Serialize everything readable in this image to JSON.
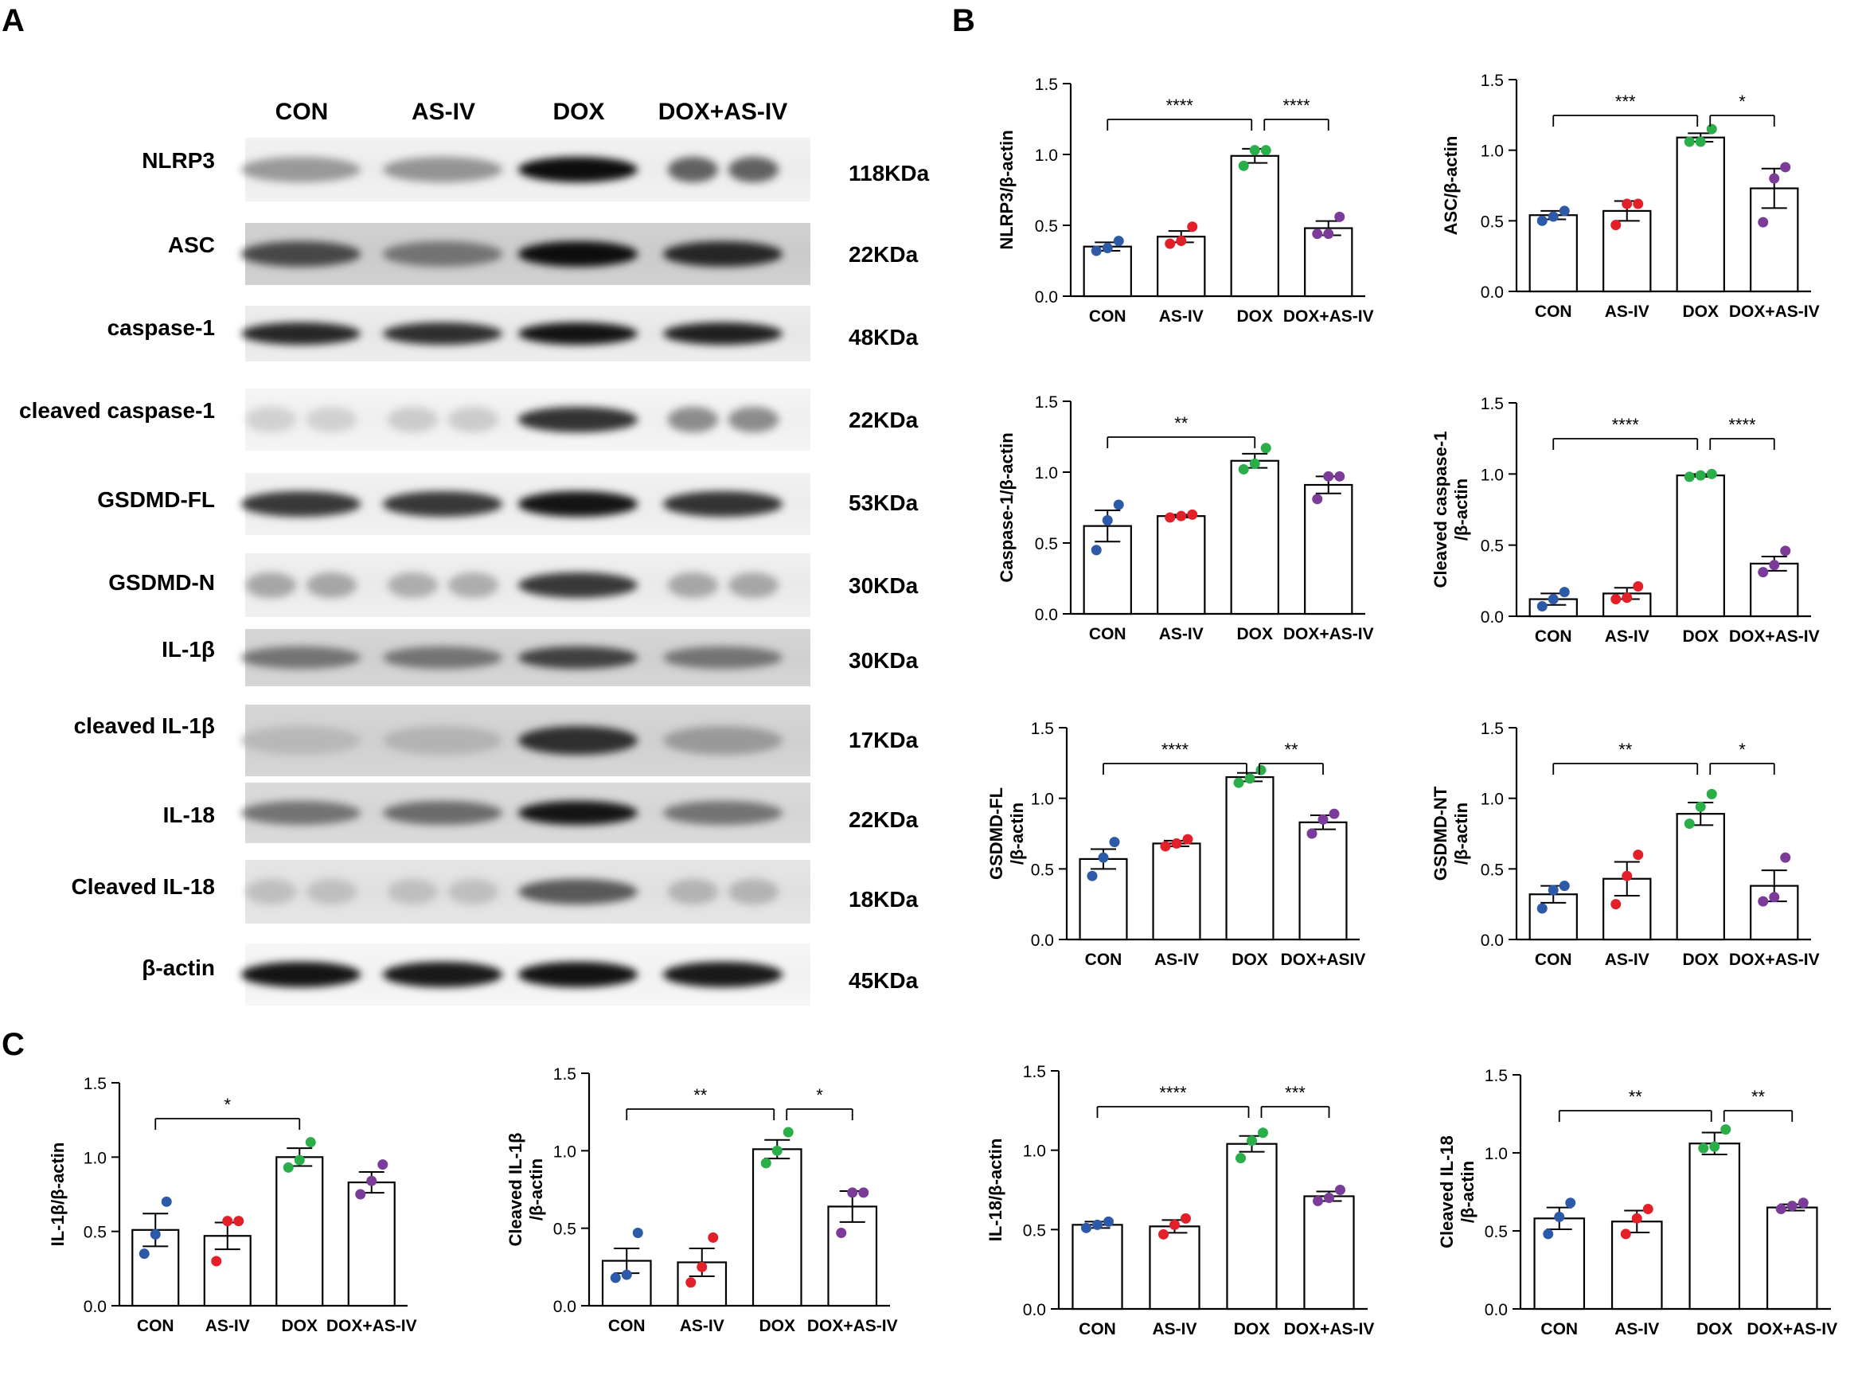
{
  "panels": {
    "a": "A",
    "b": "B",
    "c": "C"
  },
  "lanes": [
    "CON",
    "AS-IV",
    "DOX",
    "DOX+AS-IV"
  ],
  "blots": [
    {
      "protein": "NLRP3",
      "kda": "118KDa",
      "bands": [
        0.4,
        0.42,
        0.95,
        0.62
      ],
      "split": [
        false,
        false,
        false,
        true
      ],
      "bg": 0.05
    },
    {
      "protein": "ASC",
      "kda": "22KDa",
      "bands": [
        0.72,
        0.55,
        0.95,
        0.85
      ],
      "split": [
        false,
        false,
        false,
        false
      ],
      "bg": 0.18
    },
    {
      "protein": "caspase-1",
      "kda": "48KDa",
      "bands": [
        0.85,
        0.82,
        0.93,
        0.88
      ],
      "split": [
        false,
        false,
        false,
        false
      ],
      "bg": 0.07
    },
    {
      "protein": "cleaved caspase-1",
      "kda": "22KDa",
      "bands": [
        0.18,
        0.2,
        0.8,
        0.45
      ],
      "split": [
        true,
        true,
        false,
        true
      ],
      "bg": 0.04
    },
    {
      "protein": "GSDMD-FL",
      "kda": "53KDa",
      "bands": [
        0.78,
        0.78,
        0.92,
        0.8
      ],
      "split": [
        false,
        false,
        false,
        false
      ],
      "bg": 0.05
    },
    {
      "protein": "GSDMD-N",
      "kda": "30KDa",
      "bands": [
        0.35,
        0.32,
        0.78,
        0.35
      ],
      "split": [
        true,
        true,
        false,
        true
      ],
      "bg": 0.06
    },
    {
      "protein": "IL-1β",
      "kda": "30KDa",
      "bands": [
        0.55,
        0.55,
        0.75,
        0.55
      ],
      "split": [
        false,
        false,
        false,
        false
      ],
      "bg": 0.16
    },
    {
      "protein": "cleaved IL-1β",
      "kda": "17KDa",
      "bands": [
        0.28,
        0.3,
        0.82,
        0.4
      ],
      "split": [
        false,
        false,
        false,
        false
      ],
      "bg": 0.16
    },
    {
      "protein": "IL-18",
      "kda": "22KDa",
      "bands": [
        0.55,
        0.58,
        0.92,
        0.55
      ],
      "split": [
        false,
        false,
        false,
        false
      ],
      "bg": 0.14
    },
    {
      "protein": "Cleaved IL-18",
      "kda": "18KDa",
      "bands": [
        0.25,
        0.25,
        0.65,
        0.3
      ],
      "split": [
        true,
        true,
        false,
        true
      ],
      "bg": 0.1
    },
    {
      "protein": "β-actin",
      "kda": "45KDa",
      "bands": [
        0.92,
        0.9,
        0.93,
        0.9
      ],
      "split": [
        false,
        false,
        false,
        false
      ],
      "bg": 0.03
    }
  ],
  "colors": {
    "con": "#2d5aa8",
    "asiv": "#e3202a",
    "dox": "#2aae4a",
    "doxasiv": "#7a3c98",
    "bar_fill": "#ffffff",
    "axis": "#000000"
  },
  "chart_data": [
    {
      "type": "bar",
      "panel": "B",
      "ylabel": [
        "NLRP3/β-actin"
      ],
      "categories": [
        "CON",
        "AS-IV",
        "DOX",
        "DOX+AS-IV"
      ],
      "values": [
        0.35,
        0.42,
        0.99,
        0.48
      ],
      "sem": [
        0.03,
        0.04,
        0.05,
        0.05
      ],
      "points": [
        [
          0.32,
          0.34,
          0.39
        ],
        [
          0.37,
          0.39,
          0.49
        ],
        [
          0.92,
          1.03,
          1.03
        ],
        [
          0.44,
          0.44,
          0.56
        ]
      ],
      "ylim": [
        0,
        1.5
      ],
      "yticks": [
        "0.0",
        "0.5",
        "1.0",
        "1.5"
      ],
      "sig": [
        [
          "****",
          0,
          2
        ],
        [
          "****",
          2,
          3
        ]
      ]
    },
    {
      "type": "bar",
      "panel": "B",
      "ylabel": [
        "ASC/β-actin"
      ],
      "categories": [
        "CON",
        "AS-IV",
        "DOX",
        "DOX+AS-IV"
      ],
      "values": [
        0.54,
        0.57,
        1.09,
        0.73
      ],
      "sem": [
        0.03,
        0.07,
        0.03,
        0.14
      ],
      "points": [
        [
          0.5,
          0.53,
          0.57
        ],
        [
          0.47,
          0.62,
          0.62
        ],
        [
          1.06,
          1.06,
          1.15
        ],
        [
          0.49,
          0.8,
          0.88
        ]
      ],
      "ylim": [
        0,
        1.5
      ],
      "yticks": [
        "0.0",
        "0.5",
        "1.0",
        "1.5"
      ],
      "sig": [
        [
          "***",
          0,
          2
        ],
        [
          "*",
          2,
          3
        ]
      ]
    },
    {
      "type": "bar",
      "panel": "B",
      "ylabel": [
        "Caspase-1/β-actin"
      ],
      "categories": [
        "CON",
        "AS-IV",
        "DOX",
        "DOX+AS-IV"
      ],
      "values": [
        0.62,
        0.69,
        1.08,
        0.91
      ],
      "sem": [
        0.11,
        0.01,
        0.05,
        0.06
      ],
      "points": [
        [
          0.45,
          0.66,
          0.77
        ],
        [
          0.68,
          0.69,
          0.7
        ],
        [
          1.02,
          1.06,
          1.17
        ],
        [
          0.81,
          0.97,
          0.97
        ]
      ],
      "ylim": [
        0,
        1.5
      ],
      "yticks": [
        "0.0",
        "0.5",
        "1.0",
        "1.5"
      ],
      "sig": [
        [
          "**",
          0,
          2
        ]
      ]
    },
    {
      "type": "bar",
      "panel": "B",
      "ylabel": [
        "Cleaved caspase-1",
        "/β-actin"
      ],
      "categories": [
        "CON",
        "AS-IV",
        "DOX",
        "DOX+AS-IV"
      ],
      "values": [
        0.12,
        0.16,
        0.99,
        0.37
      ],
      "sem": [
        0.04,
        0.04,
        0.01,
        0.05
      ],
      "points": [
        [
          0.07,
          0.12,
          0.17
        ],
        [
          0.12,
          0.13,
          0.21
        ],
        [
          0.98,
          0.99,
          1.0
        ],
        [
          0.31,
          0.36,
          0.46
        ]
      ],
      "ylim": [
        0,
        1.5
      ],
      "yticks": [
        "0.0",
        "0.5",
        "1.0",
        "1.5"
      ],
      "sig": [
        [
          "****",
          0,
          2
        ],
        [
          "****",
          2,
          3
        ]
      ]
    },
    {
      "type": "bar",
      "panel": "B",
      "ylabel": [
        "GSDMD-FL",
        "/β-actin"
      ],
      "categories": [
        "CON",
        "AS-IV",
        "DOX",
        "DOX+ASIV"
      ],
      "values": [
        0.57,
        0.68,
        1.15,
        0.83
      ],
      "sem": [
        0.07,
        0.02,
        0.03,
        0.05
      ],
      "points": [
        [
          0.45,
          0.58,
          0.69
        ],
        [
          0.66,
          0.68,
          0.71
        ],
        [
          1.11,
          1.14,
          1.2
        ],
        [
          0.75,
          0.85,
          0.89
        ]
      ],
      "ylim": [
        0,
        1.5
      ],
      "yticks": [
        "0.0",
        "0.5",
        "1.0",
        "1.5"
      ],
      "sig": [
        [
          "****",
          0,
          2
        ],
        [
          "**",
          2,
          3
        ]
      ]
    },
    {
      "type": "bar",
      "panel": "B",
      "ylabel": [
        "GSDMD-NT",
        "/β-actin"
      ],
      "categories": [
        "CON",
        "AS-IV",
        "DOX",
        "DOX+AS-IV"
      ],
      "values": [
        0.32,
        0.43,
        0.89,
        0.38
      ],
      "sem": [
        0.06,
        0.12,
        0.08,
        0.11
      ],
      "points": [
        [
          0.22,
          0.35,
          0.38
        ],
        [
          0.25,
          0.45,
          0.6
        ],
        [
          0.82,
          0.94,
          1.03
        ],
        [
          0.27,
          0.3,
          0.58
        ]
      ],
      "ylim": [
        0,
        1.5
      ],
      "yticks": [
        "0.0",
        "0.5",
        "1.0",
        "1.5"
      ],
      "sig": [
        [
          "**",
          0,
          2
        ],
        [
          "*",
          2,
          3
        ]
      ]
    },
    {
      "type": "bar",
      "panel": "C",
      "ylabel": [
        "IL-1β/β-actin"
      ],
      "categories": [
        "CON",
        "AS-IV",
        "DOX",
        "DOX+AS-IV"
      ],
      "values": [
        0.51,
        0.47,
        1.0,
        0.83
      ],
      "sem": [
        0.11,
        0.09,
        0.06,
        0.07
      ],
      "points": [
        [
          0.35,
          0.48,
          0.7
        ],
        [
          0.3,
          0.57,
          0.57
        ],
        [
          0.93,
          0.98,
          1.1
        ],
        [
          0.75,
          0.84,
          0.95
        ]
      ],
      "ylim": [
        0,
        1.5
      ],
      "yticks": [
        "0.0",
        "0.5",
        "1.0",
        "1.5"
      ],
      "sig": [
        [
          "*",
          0,
          2
        ]
      ]
    },
    {
      "type": "bar",
      "panel": "C",
      "ylabel": [
        "Cleaved IL-1β",
        "/β-actin"
      ],
      "categories": [
        "CON",
        "AS-IV",
        "DOX",
        "DOX+AS-IV"
      ],
      "values": [
        0.29,
        0.28,
        1.01,
        0.64
      ],
      "sem": [
        0.08,
        0.09,
        0.06,
        0.1
      ],
      "points": [
        [
          0.18,
          0.2,
          0.47
        ],
        [
          0.15,
          0.25,
          0.44
        ],
        [
          0.92,
          1.0,
          1.12
        ],
        [
          0.47,
          0.73,
          0.73
        ]
      ],
      "ylim": [
        0,
        1.5
      ],
      "yticks": [
        "0.0",
        "0.5",
        "1.0",
        "1.5"
      ],
      "sig": [
        [
          "**",
          0,
          2
        ],
        [
          "*",
          2,
          3
        ]
      ]
    },
    {
      "type": "bar",
      "panel": "C",
      "ylabel": [
        "IL-18/β-actin"
      ],
      "categories": [
        "CON",
        "AS-IV",
        "DOX",
        "DOX+AS-IV"
      ],
      "values": [
        0.53,
        0.52,
        1.04,
        0.71
      ],
      "sem": [
        0.02,
        0.04,
        0.05,
        0.03
      ],
      "points": [
        [
          0.51,
          0.53,
          0.55
        ],
        [
          0.47,
          0.53,
          0.57
        ],
        [
          0.95,
          1.06,
          1.11
        ],
        [
          0.68,
          0.7,
          0.75
        ]
      ],
      "ylim": [
        0,
        1.5
      ],
      "yticks": [
        "0.0",
        "0.5",
        "1.0",
        "1.5"
      ],
      "sig": [
        [
          "****",
          0,
          2
        ],
        [
          "***",
          2,
          3
        ]
      ]
    },
    {
      "type": "bar",
      "panel": "C",
      "ylabel": [
        "Cleaved IL-18",
        "/β-actin"
      ],
      "categories": [
        "CON",
        "AS-IV",
        "DOX",
        "DOX+AS-IV"
      ],
      "values": [
        0.58,
        0.56,
        1.06,
        0.65
      ],
      "sem": [
        0.07,
        0.07,
        0.07,
        0.02
      ],
      "points": [
        [
          0.48,
          0.59,
          0.68
        ],
        [
          0.48,
          0.58,
          0.64
        ],
        [
          1.03,
          1.04,
          1.15
        ],
        [
          0.64,
          0.66,
          0.68
        ]
      ],
      "ylim": [
        0,
        1.5
      ],
      "yticks": [
        "0.0",
        "0.5",
        "1.0",
        "1.5"
      ],
      "sig": [
        [
          "**",
          0,
          2
        ],
        [
          "**",
          2,
          3
        ]
      ]
    }
  ]
}
